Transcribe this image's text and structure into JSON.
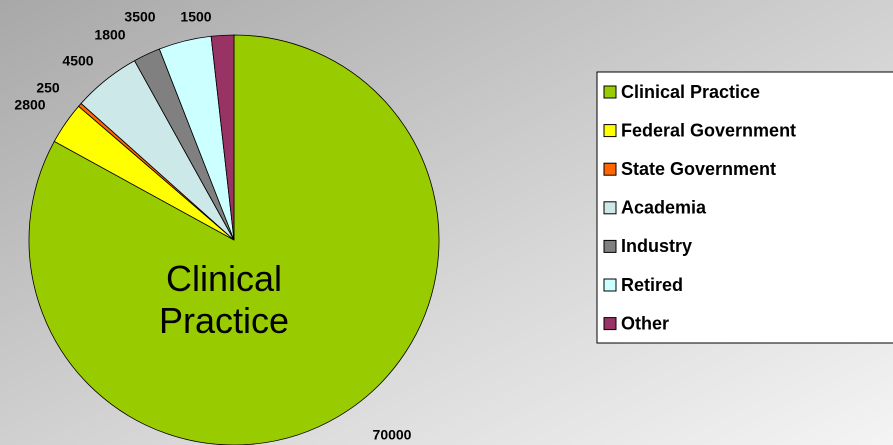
{
  "chart_data": {
    "type": "pie",
    "categories": [
      "Clinical Practice",
      "Federal Government",
      "State Government",
      "Academia",
      "Industry",
      "Retired",
      "Other"
    ],
    "values": [
      70000,
      2800,
      250,
      4500,
      1800,
      3500,
      1500
    ],
    "colors": [
      "#99cc00",
      "#ffff00",
      "#ff6600",
      "#cce8e8",
      "#808080",
      "#ccffff",
      "#993366"
    ]
  }
}
